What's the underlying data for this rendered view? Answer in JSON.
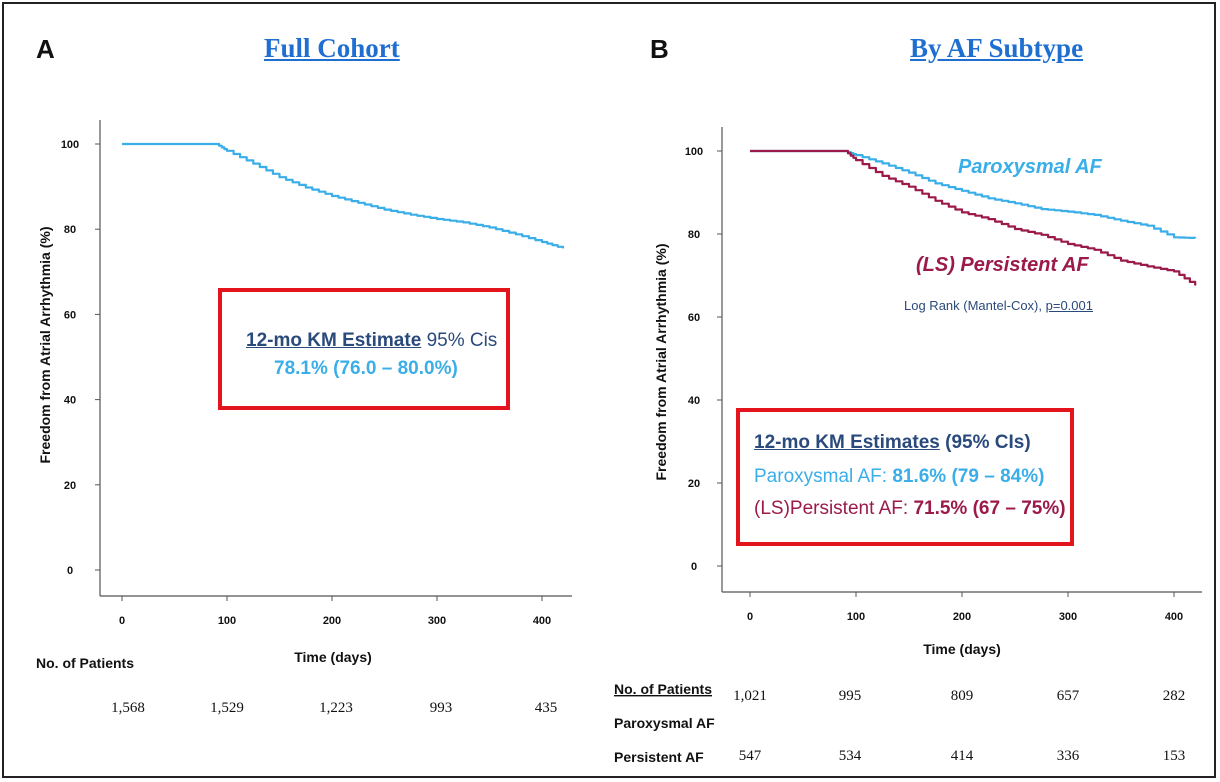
{
  "panel_a": {
    "letter": "A",
    "title": "Full Cohort",
    "box": {
      "heading": "12-mo KM Estimate",
      "heading_suffix": "95% Cis",
      "value": "78.1% (76.0 – 80.0%)"
    },
    "risk_table": {
      "header": "No. of Patients",
      "counts": [
        "1,568",
        "1,529",
        "1,223",
        "993",
        "435"
      ]
    }
  },
  "panel_b": {
    "letter": "B",
    "title": "By AF Subtype",
    "label_paroxysmal": "Paroxysmal AF",
    "label_persistent": "(LS) Persistent AF",
    "logrank_prefix": "Log Rank (Mantel-Cox), ",
    "logrank_p": "p=0.001",
    "box": {
      "heading": "12-mo KM Estimates",
      "heading_suffix": "(95% CIs)",
      "line1_label": "Paroxysmal AF: ",
      "line1_value": "81.6% (79 – 84%)",
      "line2_label": "(LS)Persistent AF: ",
      "line2_value": "71.5% (67 – 75%)"
    },
    "risk_table": {
      "header": "No. of Patients",
      "rows": [
        {
          "label": "Paroxysmal AF",
          "counts": [
            "1,021",
            "995",
            "809",
            "657",
            "282"
          ]
        },
        {
          "label": "Persistent AF",
          "counts": [
            "547",
            "534",
            "414",
            "336",
            "153"
          ]
        }
      ]
    }
  },
  "colors": {
    "paroxysmal": "#3aaee8",
    "persistent": "#9b1a4a",
    "box_border": "#e3141b",
    "title": "#1f6fd1"
  },
  "chart_data": [
    {
      "type": "line",
      "title": "Full Cohort",
      "xlabel": "Time (days)",
      "ylabel": "Freedom from Atrial Arrhythmia (%)",
      "xlim": [
        0,
        420
      ],
      "ylim": [
        0,
        100
      ],
      "x_ticks": [
        0,
        100,
        200,
        300,
        400
      ],
      "y_ticks": [
        0,
        20,
        40,
        60,
        80,
        100
      ],
      "x_tick_labels": [
        "0",
        "100",
        "200",
        "300",
        "400"
      ],
      "y_tick_labels": [
        "0",
        "20",
        "40",
        "60",
        "80",
        "100"
      ],
      "grid": false,
      "series": [
        {
          "key": "full",
          "color": "#3aaee8",
          "x": [
            0,
            90,
            100,
            125,
            150,
            175,
            200,
            225,
            250,
            275,
            300,
            325,
            350,
            375,
            400,
            420
          ],
          "y": [
            100,
            100,
            98.4,
            95.4,
            92.2,
            89.8,
            87.8,
            86.2,
            84.6,
            83.4,
            82.4,
            81.6,
            80.4,
            78.8,
            77.0,
            75.5
          ]
        }
      ]
    },
    {
      "type": "line",
      "title": "By AF Subtype",
      "xlabel": "Time (days)",
      "ylabel": "Freedom from Atrial Arrhythmia (%)",
      "xlim": [
        0,
        420
      ],
      "ylim": [
        0,
        100
      ],
      "x_ticks": [
        0,
        100,
        200,
        300,
        400
      ],
      "y_ticks": [
        0,
        20,
        40,
        60,
        80,
        100
      ],
      "x_tick_labels": [
        "0",
        "100",
        "200",
        "300",
        "400"
      ],
      "y_tick_labels": [
        "0",
        "20",
        "40",
        "60",
        "80",
        "100"
      ],
      "grid": false,
      "series": [
        {
          "key": "paroxysmal",
          "name": "Paroxysmal AF",
          "color": "#3aaee8",
          "x": [
            0,
            90,
            100,
            125,
            150,
            175,
            200,
            225,
            250,
            275,
            300,
            325,
            350,
            375,
            400,
            420
          ],
          "y": [
            100,
            100,
            99.0,
            97.0,
            94.8,
            92.2,
            90.4,
            88.6,
            87.4,
            86.0,
            85.4,
            84.6,
            83.2,
            82.0,
            79.2,
            79.0
          ]
        },
        {
          "key": "persistent",
          "name": "(LS) Persistent AF",
          "color": "#9b1a4a",
          "x": [
            0,
            90,
            100,
            125,
            150,
            175,
            200,
            225,
            250,
            275,
            300,
            325,
            350,
            375,
            400,
            420
          ],
          "y": [
            100,
            100,
            97.8,
            94.0,
            91.4,
            88.0,
            85.2,
            83.6,
            81.2,
            79.8,
            77.6,
            76.2,
            73.6,
            72.2,
            71.0,
            67.6
          ]
        }
      ]
    }
  ]
}
